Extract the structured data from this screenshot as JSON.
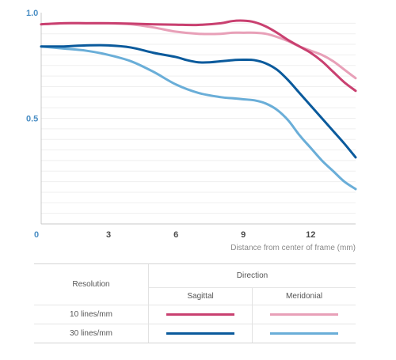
{
  "chart_data": {
    "type": "line",
    "xlabel": "Distance from center of frame (mm)",
    "ylabel": "",
    "xlim": [
      0,
      14.0
    ],
    "ylim": [
      0,
      1.0
    ],
    "x_ticks": [
      {
        "value": 0,
        "label": "0"
      },
      {
        "value": 3,
        "label": "3"
      },
      {
        "value": 6,
        "label": "6"
      },
      {
        "value": 9,
        "label": "9"
      },
      {
        "value": 12,
        "label": "12"
      }
    ],
    "y_ticks": [
      {
        "value": 0.5,
        "label": "0.5"
      },
      {
        "value": 1.0,
        "label": "1.0"
      }
    ],
    "grid": "horizontal",
    "series": [
      {
        "key": "s10",
        "color": "#c94070",
        "x": [
          0,
          1,
          2,
          3,
          4,
          5,
          6,
          7,
          8,
          8.5,
          9,
          9.5,
          10,
          10.5,
          11,
          11.5,
          12,
          12.5,
          13,
          13.5,
          14.0
        ],
        "values": [
          0.945,
          0.95,
          0.95,
          0.95,
          0.948,
          0.945,
          0.943,
          0.942,
          0.95,
          0.96,
          0.962,
          0.955,
          0.935,
          0.905,
          0.87,
          0.84,
          0.81,
          0.77,
          0.72,
          0.67,
          0.63
        ]
      },
      {
        "key": "m10",
        "color": "#e8a0b8",
        "x": [
          0,
          1,
          2,
          3,
          4,
          5,
          6,
          7,
          8,
          8.5,
          9,
          9.5,
          10,
          10.5,
          11,
          11.5,
          12,
          12.5,
          13,
          13.5,
          14.0
        ],
        "values": [
          0.945,
          0.95,
          0.95,
          0.95,
          0.945,
          0.93,
          0.91,
          0.9,
          0.9,
          0.905,
          0.905,
          0.905,
          0.9,
          0.885,
          0.865,
          0.84,
          0.82,
          0.8,
          0.77,
          0.73,
          0.69
        ]
      },
      {
        "key": "s30",
        "color": "#0a5a9c",
        "x": [
          0,
          1,
          2,
          3,
          4,
          5,
          6,
          6.5,
          7,
          7.5,
          8,
          8.5,
          9,
          9.5,
          10,
          10.5,
          11,
          11.5,
          12,
          12.5,
          13,
          13.5,
          14.0
        ],
        "values": [
          0.84,
          0.84,
          0.845,
          0.845,
          0.835,
          0.81,
          0.79,
          0.775,
          0.765,
          0.765,
          0.77,
          0.775,
          0.777,
          0.775,
          0.76,
          0.73,
          0.68,
          0.62,
          0.56,
          0.5,
          0.44,
          0.38,
          0.315
        ]
      },
      {
        "key": "m30",
        "color": "#6aaed8",
        "x": [
          0,
          1,
          2,
          3,
          4,
          5,
          6,
          7,
          8,
          8.5,
          9,
          9.5,
          10,
          10.5,
          11,
          11.5,
          12,
          12.5,
          13,
          13.5,
          14.0
        ],
        "values": [
          0.84,
          0.83,
          0.82,
          0.8,
          0.77,
          0.72,
          0.66,
          0.62,
          0.6,
          0.595,
          0.59,
          0.585,
          0.57,
          0.54,
          0.49,
          0.42,
          0.36,
          0.3,
          0.25,
          0.2,
          0.165
        ]
      }
    ]
  },
  "legend": {
    "resolution_header": "Resolution",
    "direction_header": "Direction",
    "sagittal": "Sagittal",
    "meridional": "Meridonial",
    "rows": [
      {
        "label": "10 lines/mm",
        "sagittal_color": "#c94070",
        "meridional_color": "#e8a0b8"
      },
      {
        "label": "30 lines/mm",
        "sagittal_color": "#0a5a9c",
        "meridional_color": "#6aaed8"
      }
    ]
  },
  "colors": {
    "tick_label": "#4a8ec4",
    "x_tick_label": "#4a4a4a",
    "grid": "#efefef",
    "axis": "#c8c8c8"
  }
}
